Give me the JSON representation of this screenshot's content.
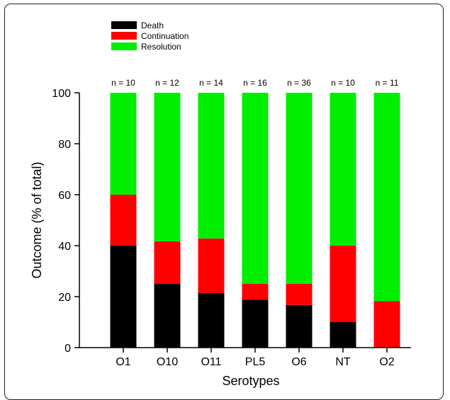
{
  "chart_data": {
    "type": "bar",
    "stacked": true,
    "title": "",
    "xlabel": "Serotypes",
    "ylabel": "Outcome (% of total)",
    "ylim": [
      0,
      100
    ],
    "yticks": [
      0,
      20,
      40,
      60,
      80,
      100
    ],
    "categories": [
      "O1",
      "O10",
      "O11",
      "PL5",
      "O6",
      "NT",
      "O2"
    ],
    "n_labels": [
      "n = 10",
      "n = 12",
      "n = 14",
      "n = 16",
      "n = 36",
      "n = 10",
      "n = 11"
    ],
    "series": [
      {
        "name": "Death",
        "color": "#000000",
        "values": [
          40,
          25,
          21.4,
          18.8,
          16.7,
          10,
          0
        ]
      },
      {
        "name": "Continuation",
        "color": "#ff0000",
        "values": [
          20,
          16.7,
          21.4,
          6.2,
          8.3,
          30,
          18.2
        ]
      },
      {
        "name": "Resolution",
        "color": "#00ee00",
        "values": [
          40,
          58.3,
          57.2,
          75,
          75,
          60,
          81.8
        ]
      }
    ],
    "grid": false,
    "legend_position": "top-left"
  }
}
